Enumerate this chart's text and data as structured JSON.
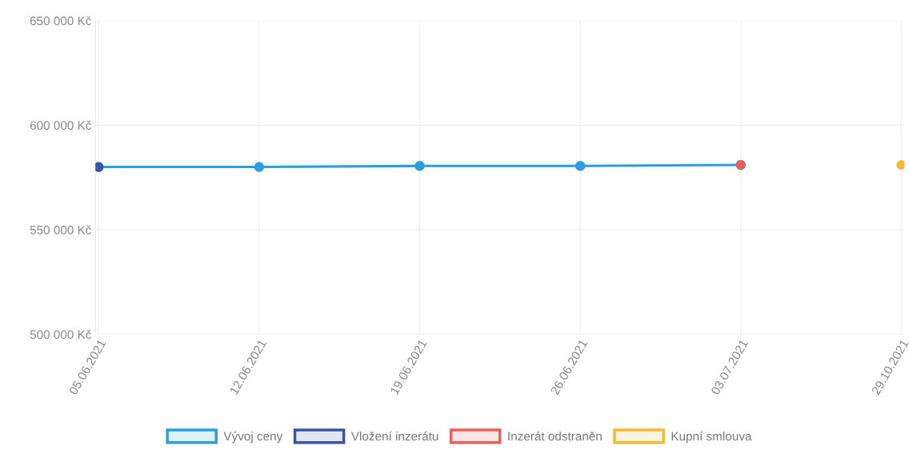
{
  "chart_data": {
    "type": "line",
    "categories": [
      "05.06.2021",
      "12.06.2021",
      "19.06.2021",
      "26.06.2021",
      "03.07.2021",
      "29.10.2021"
    ],
    "series": [
      {
        "name": "Vývoj ceny",
        "color": "#2a9fe0",
        "values": [
          580000,
          580000,
          580500,
          580500,
          581000,
          null
        ]
      },
      {
        "name": "Vložení inzerátu",
        "type": "scatter",
        "color": "#3a55a5",
        "x": [
          "05.06.2021"
        ],
        "values": [
          580000
        ]
      },
      {
        "name": "Inzerát odstraněn",
        "type": "scatter",
        "color": "#e8605a",
        "x": [
          "03.07.2021"
        ],
        "values": [
          581000
        ]
      },
      {
        "name": "Kupní smlouva",
        "type": "scatter",
        "color": "#f5b935",
        "x": [
          "29.10.2021"
        ],
        "values": [
          581000
        ]
      }
    ],
    "ylim": [
      500000,
      650000
    ],
    "yticks": [
      {
        "value": 500000,
        "label": "500 000 Kč"
      },
      {
        "value": 550000,
        "label": "550 000 Kč"
      },
      {
        "value": 600000,
        "label": "600 000 Kč"
      },
      {
        "value": 650000,
        "label": "650 000 Kč"
      }
    ],
    "grid": true,
    "legend": "bottom",
    "marker": "circle",
    "line_style": "solid"
  }
}
